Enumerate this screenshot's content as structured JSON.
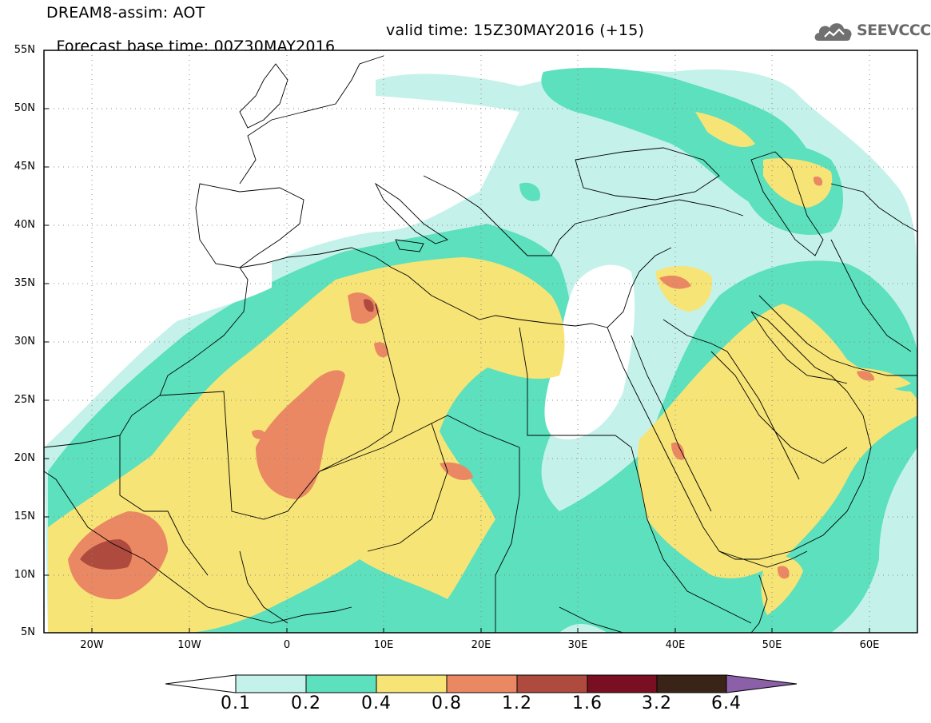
{
  "header": {
    "line1": "DREAM8-assim: AOT",
    "base_time": "Forecast base time: 00Z30MAY2016",
    "valid_time": "valid time: 15Z30MAY2016 (+15)"
  },
  "logo": {
    "text": "SEEVCCC",
    "icon": "cloud-icon"
  },
  "map": {
    "lon_range": [
      -25,
      65
    ],
    "lat_range": [
      5,
      55
    ],
    "grid": "dotted",
    "lat_labels": [
      "55N",
      "50N",
      "45N",
      "40N",
      "35N",
      "30N",
      "25N",
      "20N",
      "15N",
      "10N",
      "5N"
    ],
    "lon_labels": [
      "20W",
      "10W",
      "0",
      "10E",
      "20E",
      "30E",
      "40E",
      "50E",
      "60E"
    ]
  },
  "colorbar": {
    "labels": [
      "0.1",
      "0.2",
      "0.4",
      "0.8",
      "1.2",
      "1.6",
      "3.2",
      "6.4"
    ],
    "colors": [
      "#ffffff",
      "#c4f2ea",
      "#5ce0bd",
      "#f7e476",
      "#eb8864",
      "#ae4b3e",
      "#7a0f22",
      "#3a2418",
      "#8c60a8"
    ]
  }
}
